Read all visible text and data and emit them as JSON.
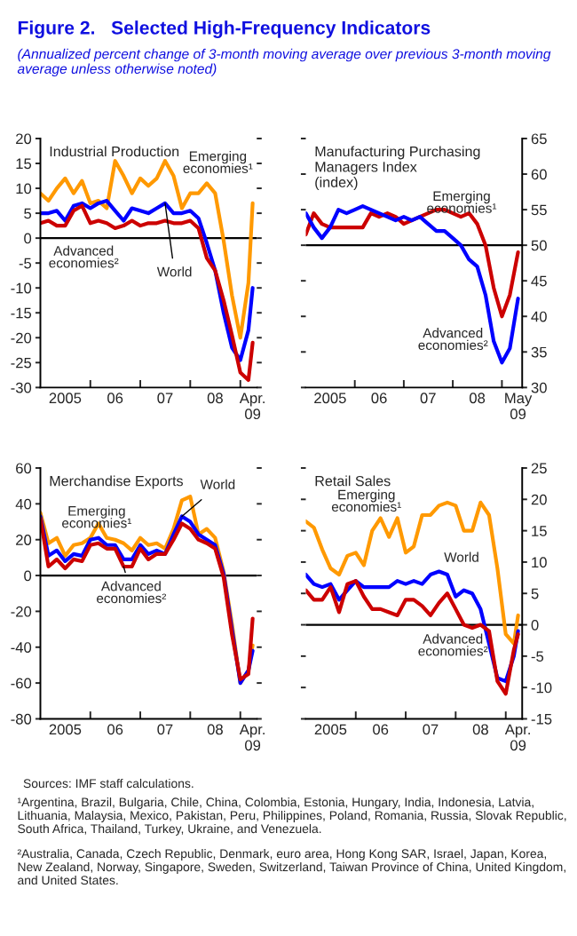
{
  "chart_data": [
    {
      "type": "other",
      "title": "Figure 2.   Selected High-Frequency Indicators",
      "subtitle": "(Annualized percent change of 3-month moving average over previous 3-month moving average unless otherwise noted)",
      "annotations": [
        "Sources: IMF staff calculations.",
        "¹Argentina, Brazil, Bulgaria, Chile, China, Colombia, Estonia, Hungary, India, Indonesia, Latvia, Lithuania, Malaysia, Mexico, Pakistan, Peru, Philippines, Poland, Romania, Russia, Slovak Republic, South Africa, Thailand, Turkey, Ukraine, and Venezuela.",
        "²Australia, Canada, Czech Republic, Denmark, euro area, Hong Kong SAR, Israel, Japan, Korea, New Zealand, Norway, Singapore, Sweden, Switzerland, Taiwan Province of China, United Kingdom, and United States."
      ]
    },
    {
      "type": "line",
      "title": "Industrial Production",
      "x": [
        "2005-01",
        "2005-03",
        "2005-05",
        "2005-07",
        "2005-09",
        "2005-11",
        "2006-01",
        "2006-03",
        "2006-05",
        "2006-07",
        "2006-09",
        "2006-11",
        "2007-01",
        "2007-03",
        "2007-05",
        "2007-07",
        "2007-09",
        "2007-11",
        "2008-01",
        "2008-03",
        "2008-05",
        "2008-07",
        "2008-09",
        "2008-11",
        "2009-01",
        "2009-03",
        "2009-04"
      ],
      "series": [
        {
          "name": "Emerging\neconomies¹",
          "color": "#ff9900",
          "values": [
            9,
            7.5,
            10,
            12,
            9,
            11.5,
            7,
            7.5,
            6,
            15.5,
            12.5,
            9,
            12,
            10.5,
            12,
            15.5,
            12.5,
            6,
            9,
            9,
            11,
            9,
            -0.5,
            -11.5,
            -20,
            -9,
            7
          ]
        },
        {
          "name": "World",
          "color": "#0000ff",
          "values": [
            5,
            5,
            5.5,
            3.5,
            6.5,
            7,
            6,
            7,
            7.5,
            5.5,
            3.5,
            6,
            5.5,
            5,
            6,
            7,
            5,
            5,
            5.5,
            4,
            -1,
            -6.5,
            -15,
            -22,
            -24.5,
            -18.5,
            -10
          ]
        },
        {
          "name": "Advanced\neconomies²",
          "color": "#cc0000",
          "values": [
            3,
            3.5,
            2.5,
            2.5,
            5.5,
            6.5,
            3,
            3.5,
            3,
            2,
            2.5,
            3.5,
            2.5,
            3,
            3,
            3.5,
            3,
            3,
            3.5,
            2,
            -4,
            -6.5,
            -12.5,
            -19.5,
            -27,
            -28.5,
            -21
          ]
        }
      ],
      "xlim": [
        "2005-01",
        "2009-05"
      ],
      "xticks": [
        {
          "value": "2005-07",
          "label": "2005"
        },
        {
          "value": "2006-01",
          "label": null
        },
        {
          "value": "2006-07",
          "label": "06"
        },
        {
          "value": "2007-01",
          "label": null
        },
        {
          "value": "2007-07",
          "label": "07"
        },
        {
          "value": "2008-01",
          "label": null
        },
        {
          "value": "2008-07",
          "label": "08"
        },
        {
          "value": "2009-01",
          "label": null
        },
        {
          "value": "2009-04",
          "label": "Apr.\n09"
        }
      ],
      "ylim": [
        -30,
        20
      ],
      "yticks": [
        -30,
        -25,
        -20,
        -15,
        -10,
        -5,
        0,
        5,
        10,
        15,
        20
      ],
      "ref_lines": [
        {
          "axis": "y",
          "value": 0,
          "color": "#000000"
        }
      ]
    },
    {
      "type": "line",
      "title": "Manufacturing Purchasing\nManagers Index\n(index)",
      "x": [
        "2005-01",
        "2005-03",
        "2005-05",
        "2005-07",
        "2005-09",
        "2005-11",
        "2006-01",
        "2006-03",
        "2006-05",
        "2006-07",
        "2006-09",
        "2006-11",
        "2007-01",
        "2007-03",
        "2007-05",
        "2007-07",
        "2007-09",
        "2007-11",
        "2008-01",
        "2008-03",
        "2008-05",
        "2008-07",
        "2008-09",
        "2008-11",
        "2009-01",
        "2009-03",
        "2009-05"
      ],
      "series": [
        {
          "name": "Emerging\neconomies¹",
          "color": "#cc0000",
          "values": [
            51.5,
            54.5,
            53,
            52.5,
            52.5,
            52.5,
            52.5,
            52.5,
            54.5,
            54,
            54.5,
            54,
            53,
            53.5,
            54,
            54.5,
            55,
            55,
            54.5,
            54,
            54.5,
            53,
            50,
            44,
            40,
            43,
            49
          ]
        },
        {
          "name": "Advanced\neconomies²",
          "color": "#0000ff",
          "values": [
            54.5,
            52.5,
            51,
            52.5,
            55,
            54.5,
            55,
            55.5,
            55,
            54.5,
            54,
            53.5,
            54,
            53.5,
            54,
            53,
            52,
            52,
            51,
            50,
            48,
            47,
            43,
            36.5,
            33.5,
            35.5,
            42.5
          ]
        }
      ],
      "xlim": [
        "2005-01",
        "2009-06"
      ],
      "xticks": [
        {
          "value": "2005-07",
          "label": "2005"
        },
        {
          "value": "2006-01",
          "label": null
        },
        {
          "value": "2006-07",
          "label": "06"
        },
        {
          "value": "2007-01",
          "label": null
        },
        {
          "value": "2007-07",
          "label": "07"
        },
        {
          "value": "2008-01",
          "label": null
        },
        {
          "value": "2008-07",
          "label": "08"
        },
        {
          "value": "2009-01",
          "label": null
        },
        {
          "value": "2009-05",
          "label": "May\n09"
        }
      ],
      "ylim": [
        30,
        65
      ],
      "yticks": [
        30,
        35,
        40,
        45,
        50,
        55,
        60,
        65
      ],
      "ref_lines": [
        {
          "axis": "y",
          "value": 50,
          "color": "#000000"
        }
      ]
    },
    {
      "type": "line",
      "title": "Merchandise Exports",
      "x": [
        "2005-01",
        "2005-03",
        "2005-05",
        "2005-07",
        "2005-09",
        "2005-11",
        "2006-01",
        "2006-03",
        "2006-05",
        "2006-07",
        "2006-09",
        "2006-11",
        "2007-01",
        "2007-03",
        "2007-05",
        "2007-07",
        "2007-09",
        "2007-11",
        "2008-01",
        "2008-03",
        "2008-05",
        "2008-07",
        "2008-09",
        "2008-11",
        "2009-01",
        "2009-03",
        "2009-04"
      ],
      "series": [
        {
          "name": "Emerging\neconomies¹",
          "color": "#ff9900",
          "values": [
            35,
            18,
            21,
            11,
            17,
            18,
            21,
            29,
            21,
            20,
            18,
            14,
            21,
            17,
            18,
            15,
            26,
            42,
            44,
            23,
            26,
            21,
            2,
            -27,
            -60,
            -53,
            -39
          ]
        },
        {
          "name": "World",
          "color": "#0000ff",
          "values": [
            33,
            11,
            14,
            8,
            12,
            11,
            20,
            21,
            17,
            17,
            9,
            9,
            17,
            12,
            14,
            12,
            23,
            33,
            30,
            23,
            20,
            17,
            1,
            -30,
            -60,
            -53,
            -42
          ]
        },
        {
          "name": "Advanced\neconomies²",
          "color": "#cc0000",
          "values": [
            32,
            5,
            9,
            4,
            9,
            8,
            17,
            18,
            15,
            15,
            5,
            5,
            15,
            9,
            12,
            12,
            20,
            29,
            26,
            20,
            18,
            15,
            -1,
            -33,
            -58,
            -55,
            -24
          ]
        }
      ],
      "xlim": [
        "2005-01",
        "2009-05"
      ],
      "xticks": [
        {
          "value": "2005-07",
          "label": "2005"
        },
        {
          "value": "2006-01",
          "label": null
        },
        {
          "value": "2006-07",
          "label": "06"
        },
        {
          "value": "2007-01",
          "label": null
        },
        {
          "value": "2007-07",
          "label": "07"
        },
        {
          "value": "2008-01",
          "label": null
        },
        {
          "value": "2008-07",
          "label": "08"
        },
        {
          "value": "2009-01",
          "label": null
        },
        {
          "value": "2009-04",
          "label": "Apr.\n09"
        }
      ],
      "ylim": [
        -80,
        60
      ],
      "yticks": [
        -80,
        -60,
        -40,
        -20,
        0,
        20,
        40,
        60
      ],
      "ref_lines": [
        {
          "axis": "y",
          "value": 0,
          "color": "#000000"
        }
      ]
    },
    {
      "type": "line",
      "title": "Retail Sales",
      "x": [
        "2005-01",
        "2005-03",
        "2005-05",
        "2005-07",
        "2005-09",
        "2005-11",
        "2006-01",
        "2006-03",
        "2006-05",
        "2006-07",
        "2006-09",
        "2006-11",
        "2007-01",
        "2007-03",
        "2007-05",
        "2007-07",
        "2007-09",
        "2007-11",
        "2008-01",
        "2008-03",
        "2008-05",
        "2008-07",
        "2008-09",
        "2008-11",
        "2009-01",
        "2009-03",
        "2009-04"
      ],
      "series": [
        {
          "name": "Emerging\neconomies¹",
          "color": "#ff9900",
          "values": [
            16.5,
            15.5,
            12,
            9,
            8,
            11,
            11.5,
            9.5,
            15,
            17,
            14,
            17,
            11.5,
            12.5,
            17.5,
            17.5,
            19,
            19.5,
            19,
            15,
            15,
            19.5,
            17.5,
            9,
            -1.5,
            -3,
            1.5
          ]
        },
        {
          "name": "World",
          "color": "#0000ff",
          "values": [
            8,
            6.5,
            6,
            6.5,
            4,
            5.5,
            7,
            6,
            6,
            6,
            6,
            7,
            6.5,
            7,
            6.5,
            8,
            8.5,
            8,
            4.5,
            5.5,
            5,
            2.5,
            -3,
            -8.5,
            -9,
            -5,
            -1
          ]
        },
        {
          "name": "Advanced\neconomies²",
          "color": "#cc0000",
          "values": [
            5.5,
            4,
            4,
            6,
            2,
            6.5,
            7,
            4.5,
            2.5,
            2.5,
            2,
            1.5,
            4,
            4,
            3,
            1.5,
            3.5,
            5,
            2.5,
            0,
            -0.5,
            0,
            -1,
            -9,
            -11,
            -4,
            -1.5
          ]
        }
      ],
      "xlim": [
        "2005-01",
        "2009-05"
      ],
      "xticks": [
        {
          "value": "2005-07",
          "label": "2005"
        },
        {
          "value": "2006-01",
          "label": null
        },
        {
          "value": "2006-07",
          "label": "06"
        },
        {
          "value": "2007-01",
          "label": null
        },
        {
          "value": "2007-07",
          "label": "07"
        },
        {
          "value": "2008-01",
          "label": null
        },
        {
          "value": "2008-07",
          "label": "08"
        },
        {
          "value": "2009-01",
          "label": null
        },
        {
          "value": "2009-04",
          "label": "Apr.\n09"
        }
      ],
      "ylim": [
        -15,
        25
      ],
      "yticks": [
        -15,
        -10,
        -5,
        0,
        5,
        10,
        15,
        20,
        25
      ],
      "ref_lines": [
        {
          "axis": "y",
          "value": 0,
          "color": "#000000"
        }
      ]
    }
  ]
}
